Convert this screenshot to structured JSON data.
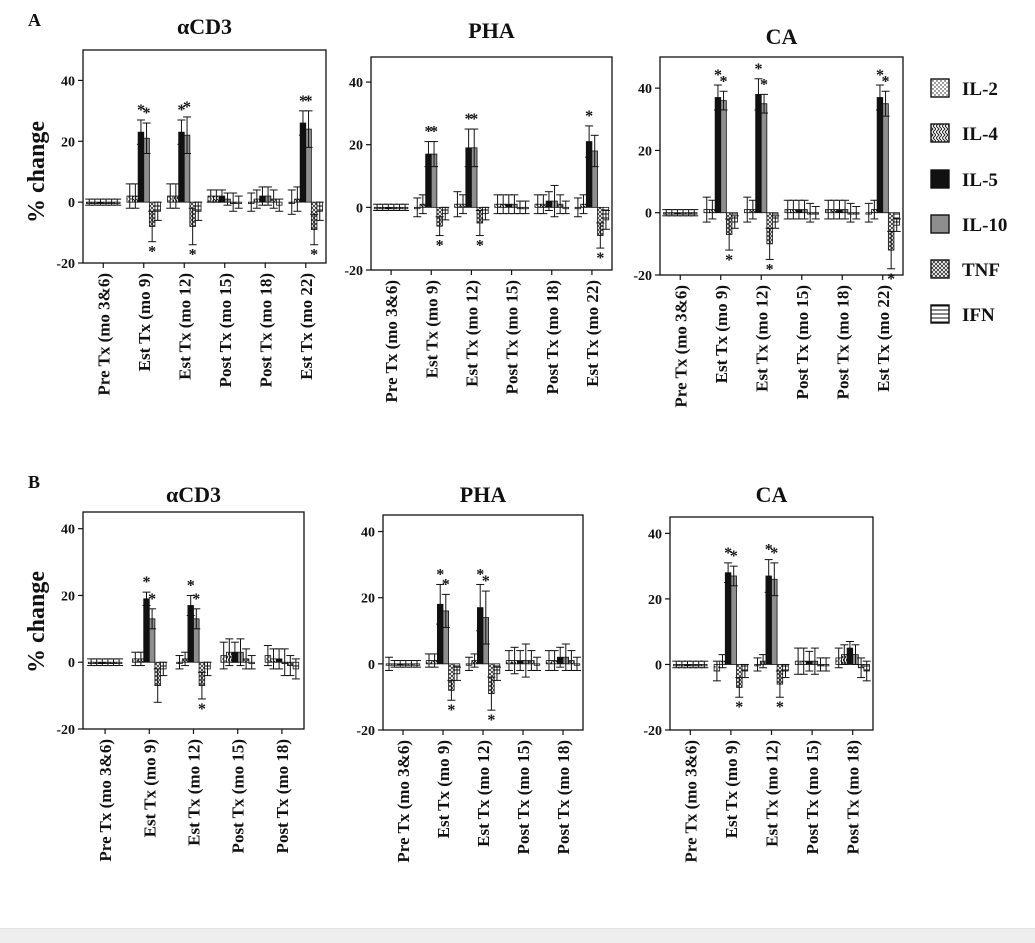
{
  "figure": {
    "panel_labels": [
      "A",
      "B"
    ],
    "y_axis_label": "% change",
    "legend": [
      {
        "label": "IL-2",
        "pattern": "dots"
      },
      {
        "label": "IL-4",
        "pattern": "chevron"
      },
      {
        "label": "IL-5",
        "pattern": "solid"
      },
      {
        "label": "IL-10",
        "pattern": "gray"
      },
      {
        "label": "TNF",
        "pattern": "crosshatch"
      },
      {
        "label": "IFN",
        "pattern": "hlines"
      }
    ],
    "colors": {
      "solid": "#111111",
      "gray": "#8e8e8e",
      "frame": "#111111"
    }
  },
  "chart_data": [
    {
      "type": "bar",
      "panel": "A",
      "title": "αCD3",
      "xlabel": "",
      "ylabel": "% change",
      "ylim": [
        -20,
        50
      ],
      "yticks": [
        -20,
        0,
        20,
        40
      ],
      "categories": [
        "Pre Tx (mo 3&6)",
        "Est Tx (mo 9)",
        "Est Tx (mo 12)",
        "Post Tx (mo 15)",
        "Post Tx (mo 18)",
        "Est Tx (mo 22)"
      ],
      "series": [
        {
          "name": "IL-2",
          "values": [
            0,
            2,
            2,
            2,
            0,
            0
          ],
          "errors": [
            1,
            4,
            4,
            2,
            3,
            4
          ]
        },
        {
          "name": "IL-4",
          "values": [
            0,
            2,
            2,
            2,
            1,
            1
          ],
          "errors": [
            1,
            4,
            4,
            2,
            3,
            4
          ]
        },
        {
          "name": "IL-5",
          "values": [
            0,
            23,
            23,
            2,
            2,
            26
          ],
          "errors": [
            1,
            4,
            4,
            2,
            3,
            4
          ]
        },
        {
          "name": "IL-10",
          "values": [
            0,
            21,
            22,
            1,
            2,
            24
          ],
          "errors": [
            1,
            5,
            6,
            2,
            3,
            6
          ]
        },
        {
          "name": "TNF",
          "values": [
            0,
            -8,
            -8,
            0,
            1,
            -9
          ],
          "errors": [
            1,
            5,
            6,
            3,
            3,
            5
          ]
        },
        {
          "name": "IFN",
          "values": [
            0,
            -3,
            -3,
            0,
            -1,
            -3
          ],
          "errors": [
            1,
            3,
            3,
            2,
            2,
            3
          ]
        }
      ],
      "significance": [
        {
          "category": "Est Tx (mo 9)",
          "series": "IL-5",
          "mark": "*"
        },
        {
          "category": "Est Tx (mo 9)",
          "series": "IL-10",
          "mark": "*"
        },
        {
          "category": "Est Tx (mo 9)",
          "series": "TNF",
          "mark": "*"
        },
        {
          "category": "Est Tx (mo 12)",
          "series": "IL-5",
          "mark": "*"
        },
        {
          "category": "Est Tx (mo 12)",
          "series": "IL-10",
          "mark": "*"
        },
        {
          "category": "Est Tx (mo 12)",
          "series": "TNF",
          "mark": "*"
        },
        {
          "category": "Est Tx (mo 22)",
          "series": "IL-5",
          "mark": "*"
        },
        {
          "category": "Est Tx (mo 22)",
          "series": "IL-10",
          "mark": "*"
        },
        {
          "category": "Est Tx (mo 22)",
          "series": "TNF",
          "mark": "*"
        }
      ]
    },
    {
      "type": "bar",
      "panel": "A",
      "title": "PHA",
      "xlabel": "",
      "ylabel": "",
      "ylim": [
        -20,
        48
      ],
      "yticks": [
        -20,
        0,
        20,
        40
      ],
      "categories": [
        "Pre Tx (mo 3&6)",
        "Est Tx (mo 9)",
        "Est Tx (mo 12)",
        "Post Tx (mo 15)",
        "Post Tx (mo 18)",
        "Est Tx (mo 22)"
      ],
      "series": [
        {
          "name": "IL-2",
          "values": [
            0,
            0,
            1,
            1,
            1,
            0
          ],
          "errors": [
            1,
            3,
            4,
            3,
            3,
            3
          ]
        },
        {
          "name": "IL-4",
          "values": [
            0,
            1,
            1,
            1,
            1,
            1
          ],
          "errors": [
            1,
            3,
            3,
            3,
            3,
            3
          ]
        },
        {
          "name": "IL-5",
          "values": [
            0,
            17,
            19,
            1,
            2,
            21
          ],
          "errors": [
            1,
            4,
            6,
            3,
            3,
            5
          ]
        },
        {
          "name": "IL-10",
          "values": [
            0,
            17,
            19,
            1,
            2,
            18
          ],
          "errors": [
            1,
            4,
            6,
            3,
            5,
            5
          ]
        },
        {
          "name": "TNF",
          "values": [
            0,
            -6,
            -5,
            0,
            1,
            -9
          ],
          "errors": [
            1,
            3,
            4,
            2,
            3,
            4
          ]
        },
        {
          "name": "IFN",
          "values": [
            0,
            -2,
            -2,
            0,
            0,
            -4
          ],
          "errors": [
            1,
            2,
            2,
            2,
            2,
            3
          ]
        }
      ],
      "significance": [
        {
          "category": "Est Tx (mo 9)",
          "series": "IL-5",
          "mark": "*"
        },
        {
          "category": "Est Tx (mo 9)",
          "series": "IL-10",
          "mark": "*"
        },
        {
          "category": "Est Tx (mo 9)",
          "series": "TNF",
          "mark": "*"
        },
        {
          "category": "Est Tx (mo 12)",
          "series": "IL-5",
          "mark": "*"
        },
        {
          "category": "Est Tx (mo 12)",
          "series": "IL-10",
          "mark": "*"
        },
        {
          "category": "Est Tx (mo 12)",
          "series": "TNF",
          "mark": "*"
        },
        {
          "category": "Est Tx (mo 22)",
          "series": "IL-5",
          "mark": "*"
        },
        {
          "category": "Est Tx (mo 22)",
          "series": "TNF",
          "mark": "*"
        }
      ]
    },
    {
      "type": "bar",
      "panel": "A",
      "title": "CA",
      "xlabel": "",
      "ylabel": "",
      "ylim": [
        -20,
        50
      ],
      "yticks": [
        -20,
        0,
        20,
        40
      ],
      "categories": [
        "Pre Tx (mo 3&6)",
        "Est Tx (mo 9)",
        "Est Tx (mo 12)",
        "Post Tx (mo 15)",
        "Post Tx (mo 18)",
        "Est Tx (mo 22)"
      ],
      "series": [
        {
          "name": "IL-2",
          "values": [
            0,
            1,
            1,
            1,
            1,
            0
          ],
          "errors": [
            1,
            4,
            4,
            3,
            3,
            3
          ]
        },
        {
          "name": "IL-4",
          "values": [
            0,
            1,
            1,
            1,
            1,
            1
          ],
          "errors": [
            1,
            3,
            3,
            3,
            3,
            3
          ]
        },
        {
          "name": "IL-5",
          "values": [
            0,
            37,
            38,
            1,
            1,
            37
          ],
          "errors": [
            1,
            4,
            5,
            3,
            3,
            4
          ]
        },
        {
          "name": "IL-10",
          "values": [
            0,
            36,
            35,
            1,
            1,
            35
          ],
          "errors": [
            1,
            3,
            3,
            3,
            3,
            4
          ]
        },
        {
          "name": "TNF",
          "values": [
            0,
            -7,
            -10,
            0,
            0,
            -12
          ],
          "errors": [
            1,
            5,
            5,
            3,
            3,
            6
          ]
        },
        {
          "name": "IFN",
          "values": [
            0,
            -3,
            -3,
            0,
            0,
            -4
          ],
          "errors": [
            1,
            2,
            2,
            2,
            2,
            2
          ]
        }
      ],
      "significance": [
        {
          "category": "Est Tx (mo 9)",
          "series": "IL-5",
          "mark": "*"
        },
        {
          "category": "Est Tx (mo 9)",
          "series": "IL-10",
          "mark": "*"
        },
        {
          "category": "Est Tx (mo 9)",
          "series": "TNF",
          "mark": "*"
        },
        {
          "category": "Est Tx (mo 12)",
          "series": "IL-5",
          "mark": "*"
        },
        {
          "category": "Est Tx (mo 12)",
          "series": "IL-10",
          "mark": "*"
        },
        {
          "category": "Est Tx (mo 12)",
          "series": "TNF",
          "mark": "*"
        },
        {
          "category": "Est Tx (mo 22)",
          "series": "IL-5",
          "mark": "*"
        },
        {
          "category": "Est Tx (mo 22)",
          "series": "IL-10",
          "mark": "*"
        },
        {
          "category": "Est Tx (mo 22)",
          "series": "TNF",
          "mark": "*"
        }
      ]
    },
    {
      "type": "bar",
      "panel": "B",
      "title": "αCD3",
      "xlabel": "",
      "ylabel": "% change",
      "ylim": [
        -20,
        45
      ],
      "yticks": [
        -20,
        0,
        20,
        40
      ],
      "categories": [
        "Pre Tx (mo 3&6)",
        "Est Tx (mo 9)",
        "Est Tx (mo 12)",
        "Post Tx (mo 15)",
        "Post Tx (mo 18)"
      ],
      "series": [
        {
          "name": "IL-2",
          "values": [
            0,
            1,
            0,
            2,
            2
          ],
          "errors": [
            1,
            2,
            2,
            4,
            3
          ]
        },
        {
          "name": "IL-4",
          "values": [
            0,
            1,
            1,
            3,
            1
          ],
          "errors": [
            1,
            2,
            2,
            4,
            3
          ]
        },
        {
          "name": "IL-5",
          "values": [
            0,
            19,
            17,
            3,
            1
          ],
          "errors": [
            1,
            2,
            3,
            3,
            3
          ]
        },
        {
          "name": "IL-10",
          "values": [
            0,
            13,
            13,
            3,
            0
          ],
          "errors": [
            1,
            3,
            3,
            4,
            4
          ]
        },
        {
          "name": "TNF",
          "values": [
            0,
            -7,
            -7,
            1,
            -1
          ],
          "errors": [
            1,
            5,
            4,
            3,
            3
          ]
        },
        {
          "name": "IFN",
          "values": [
            0,
            -2,
            -2,
            0,
            -2
          ],
          "errors": [
            1,
            2,
            2,
            2,
            3
          ]
        }
      ],
      "significance": [
        {
          "category": "Est Tx (mo 9)",
          "series": "IL-5",
          "mark": "*"
        },
        {
          "category": "Est Tx (mo 9)",
          "series": "IL-10",
          "mark": "*"
        },
        {
          "category": "Est Tx (mo 12)",
          "series": "IL-5",
          "mark": "*"
        },
        {
          "category": "Est Tx (mo 12)",
          "series": "IL-10",
          "mark": "*"
        },
        {
          "category": "Est Tx (mo 12)",
          "series": "TNF",
          "mark": "*"
        }
      ]
    },
    {
      "type": "bar",
      "panel": "B",
      "title": "PHA",
      "xlabel": "",
      "ylabel": "",
      "ylim": [
        -20,
        45
      ],
      "yticks": [
        -20,
        0,
        20,
        40
      ],
      "categories": [
        "Pre Tx (mo 3&6)",
        "Est Tx (mo 9)",
        "Est Tx (mo 12)",
        "Post Tx (mo 15)",
        "Post Tx (mo 18)"
      ],
      "series": [
        {
          "name": "IL-2",
          "values": [
            0,
            1,
            0,
            1,
            1
          ],
          "errors": [
            2,
            2,
            2,
            3,
            3
          ]
        },
        {
          "name": "IL-4",
          "values": [
            0,
            1,
            1,
            1,
            1
          ],
          "errors": [
            1,
            2,
            2,
            4,
            3
          ]
        },
        {
          "name": "IL-5",
          "values": [
            0,
            18,
            17,
            1,
            2
          ],
          "errors": [
            1,
            6,
            7,
            3,
            3
          ]
        },
        {
          "name": "IL-10",
          "values": [
            0,
            16,
            14,
            1,
            2
          ],
          "errors": [
            1,
            5,
            8,
            5,
            4
          ]
        },
        {
          "name": "TNF",
          "values": [
            0,
            -8,
            -9,
            1,
            1
          ],
          "errors": [
            1,
            3,
            5,
            3,
            3
          ]
        },
        {
          "name": "IFN",
          "values": [
            0,
            -3,
            -3,
            0,
            0
          ],
          "errors": [
            1,
            2,
            2,
            2,
            2
          ]
        }
      ],
      "significance": [
        {
          "category": "Est Tx (mo 9)",
          "series": "IL-5",
          "mark": "*"
        },
        {
          "category": "Est Tx (mo 9)",
          "series": "IL-10",
          "mark": "*"
        },
        {
          "category": "Est Tx (mo 9)",
          "series": "TNF",
          "mark": "*"
        },
        {
          "category": "Est Tx (mo 12)",
          "series": "IL-5",
          "mark": "*"
        },
        {
          "category": "Est Tx (mo 12)",
          "series": "IL-10",
          "mark": "*"
        },
        {
          "category": "Est Tx (mo 12)",
          "series": "TNF",
          "mark": "*"
        }
      ]
    },
    {
      "type": "bar",
      "panel": "B",
      "title": "CA",
      "xlabel": "",
      "ylabel": "",
      "ylim": [
        -20,
        45
      ],
      "yticks": [
        -20,
        0,
        20,
        40
      ],
      "categories": [
        "Pre Tx (mo 3&6)",
        "Est Tx (mo 9)",
        "Est Tx (mo 12)",
        "Post Tx (mo 15)",
        "Post Tx (mo 18)"
      ],
      "series": [
        {
          "name": "IL-2",
          "values": [
            0,
            -2,
            0,
            1,
            2
          ],
          "errors": [
            1,
            3,
            2,
            4,
            3
          ]
        },
        {
          "name": "IL-4",
          "values": [
            0,
            1,
            1,
            1,
            3
          ],
          "errors": [
            1,
            2,
            2,
            4,
            3
          ]
        },
        {
          "name": "IL-5",
          "values": [
            0,
            28,
            27,
            1,
            5
          ],
          "errors": [
            1,
            3,
            5,
            3,
            2
          ]
        },
        {
          "name": "IL-10",
          "values": [
            0,
            27,
            26,
            1,
            3
          ],
          "errors": [
            1,
            3,
            5,
            4,
            3
          ]
        },
        {
          "name": "TNF",
          "values": [
            0,
            -7,
            -6,
            0,
            -1
          ],
          "errors": [
            1,
            3,
            4,
            2,
            3
          ]
        },
        {
          "name": "IFN",
          "values": [
            0,
            -2,
            -2,
            0,
            -2
          ],
          "errors": [
            1,
            2,
            2,
            2,
            3
          ]
        }
      ],
      "significance": [
        {
          "category": "Est Tx (mo 9)",
          "series": "IL-5",
          "mark": "*"
        },
        {
          "category": "Est Tx (mo 9)",
          "series": "IL-10",
          "mark": "*"
        },
        {
          "category": "Est Tx (mo 9)",
          "series": "TNF",
          "mark": "*"
        },
        {
          "category": "Est Tx (mo 12)",
          "series": "IL-5",
          "mark": "*"
        },
        {
          "category": "Est Tx (mo 12)",
          "series": "IL-10",
          "mark": "*"
        },
        {
          "category": "Est Tx (mo 12)",
          "series": "TNF",
          "mark": "*"
        }
      ]
    }
  ]
}
